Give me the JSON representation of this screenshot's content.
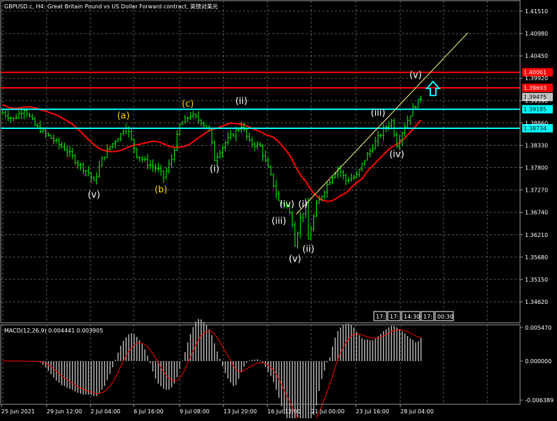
{
  "header": {
    "title": "GBPUSD.c, H4:  Great Britain Pound vs US Dollar Forward contract, 英镑对美元"
  },
  "macd": {
    "label": "MACD(12,26,9) 0.004441 0.003905",
    "axis_ticks": [
      "0.005470",
      "0.000000",
      "-0.006389"
    ]
  },
  "price_axis": {
    "ticks": [
      "1.41510",
      "1.40980",
      "1.40450",
      "1.39920",
      "1.39390",
      "1.38860",
      "1.38330",
      "1.37800",
      "1.37270",
      "1.36740",
      "1.36210",
      "1.35680",
      "1.35150",
      "1.34620"
    ],
    "tick_values": [
      1.4151,
      1.4098,
      1.4045,
      1.3992,
      1.3939,
      1.3886,
      1.3833,
      1.378,
      1.3727,
      1.3674,
      1.3621,
      1.3568,
      1.3515,
      1.3462
    ]
  },
  "levels": [
    {
      "label": "1.40061",
      "value": 1.40061,
      "color": "#ff0000",
      "type": "resistance"
    },
    {
      "label": "1.39693",
      "value": 1.39693,
      "color": "#ff0000",
      "type": "resistance"
    },
    {
      "label": "1.39475",
      "value": 1.39475,
      "color": "#c0c0c0",
      "type": "current-price"
    },
    {
      "label": "1.39185",
      "value": 1.39185,
      "color": "#00ffff",
      "type": "support"
    },
    {
      "label": "1.38734",
      "value": 1.38734,
      "color": "#00ffff",
      "type": "support"
    }
  ],
  "time_axis": {
    "labels": [
      "25 Jun 2021",
      "29 Jun 12:00",
      "2 Jul 04:00",
      "6 Jul 16:00",
      "9 Jul 08:00",
      "13 Jul 20:00",
      "16 Jul 12:00",
      "21 Jul 00:00",
      "23 Jul 16:00",
      "28 Jul 04:00"
    ]
  },
  "scroll_boxes": [
    "17:",
    "17:",
    "14:30",
    "17:",
    "00:30"
  ],
  "wave_labels": [
    {
      "text": "(v)",
      "color": "#ffffff",
      "bar": 34
    },
    {
      "text": "(a)",
      "color": "#ffd700",
      "bar": 45
    },
    {
      "text": "(b)",
      "color": "#ffd700",
      "bar": 59
    },
    {
      "text": "(c)",
      "color": "#ffd700",
      "bar": 69
    },
    {
      "text": "(i)",
      "color": "#ffffff",
      "bar": 79
    },
    {
      "text": "(ii)",
      "color": "#ffffff",
      "bar": 89
    },
    {
      "text": "(iv)",
      "color": "#ffffff",
      "bar": 106
    },
    {
      "text": "(iii)",
      "color": "#ffffff",
      "bar": 103
    },
    {
      "text": "(v)",
      "color": "#ffffff",
      "bar": 109
    },
    {
      "text": "(i)",
      "color": "#ffffff",
      "bar": 112
    },
    {
      "text": "(ii)",
      "color": "#ffffff",
      "bar": 114
    },
    {
      "text": "(iii)",
      "color": "#ffffff",
      "bar": 140
    },
    {
      "text": "(iv)",
      "color": "#ffffff",
      "bar": 147
    },
    {
      "text": "(v)",
      "color": "#ffffff",
      "bar": 154
    }
  ],
  "colors": {
    "background": "#000000",
    "candle": "#00ff00",
    "grid": "#5a5a5a",
    "moving_average": "#ff0000",
    "macd_histogram": "#c0c0c0",
    "macd_signal": "#ff0000",
    "trendline": "#ffff80",
    "arrow": "#00ffff"
  },
  "icons": {
    "arrow": "up-arrow-icon"
  }
}
